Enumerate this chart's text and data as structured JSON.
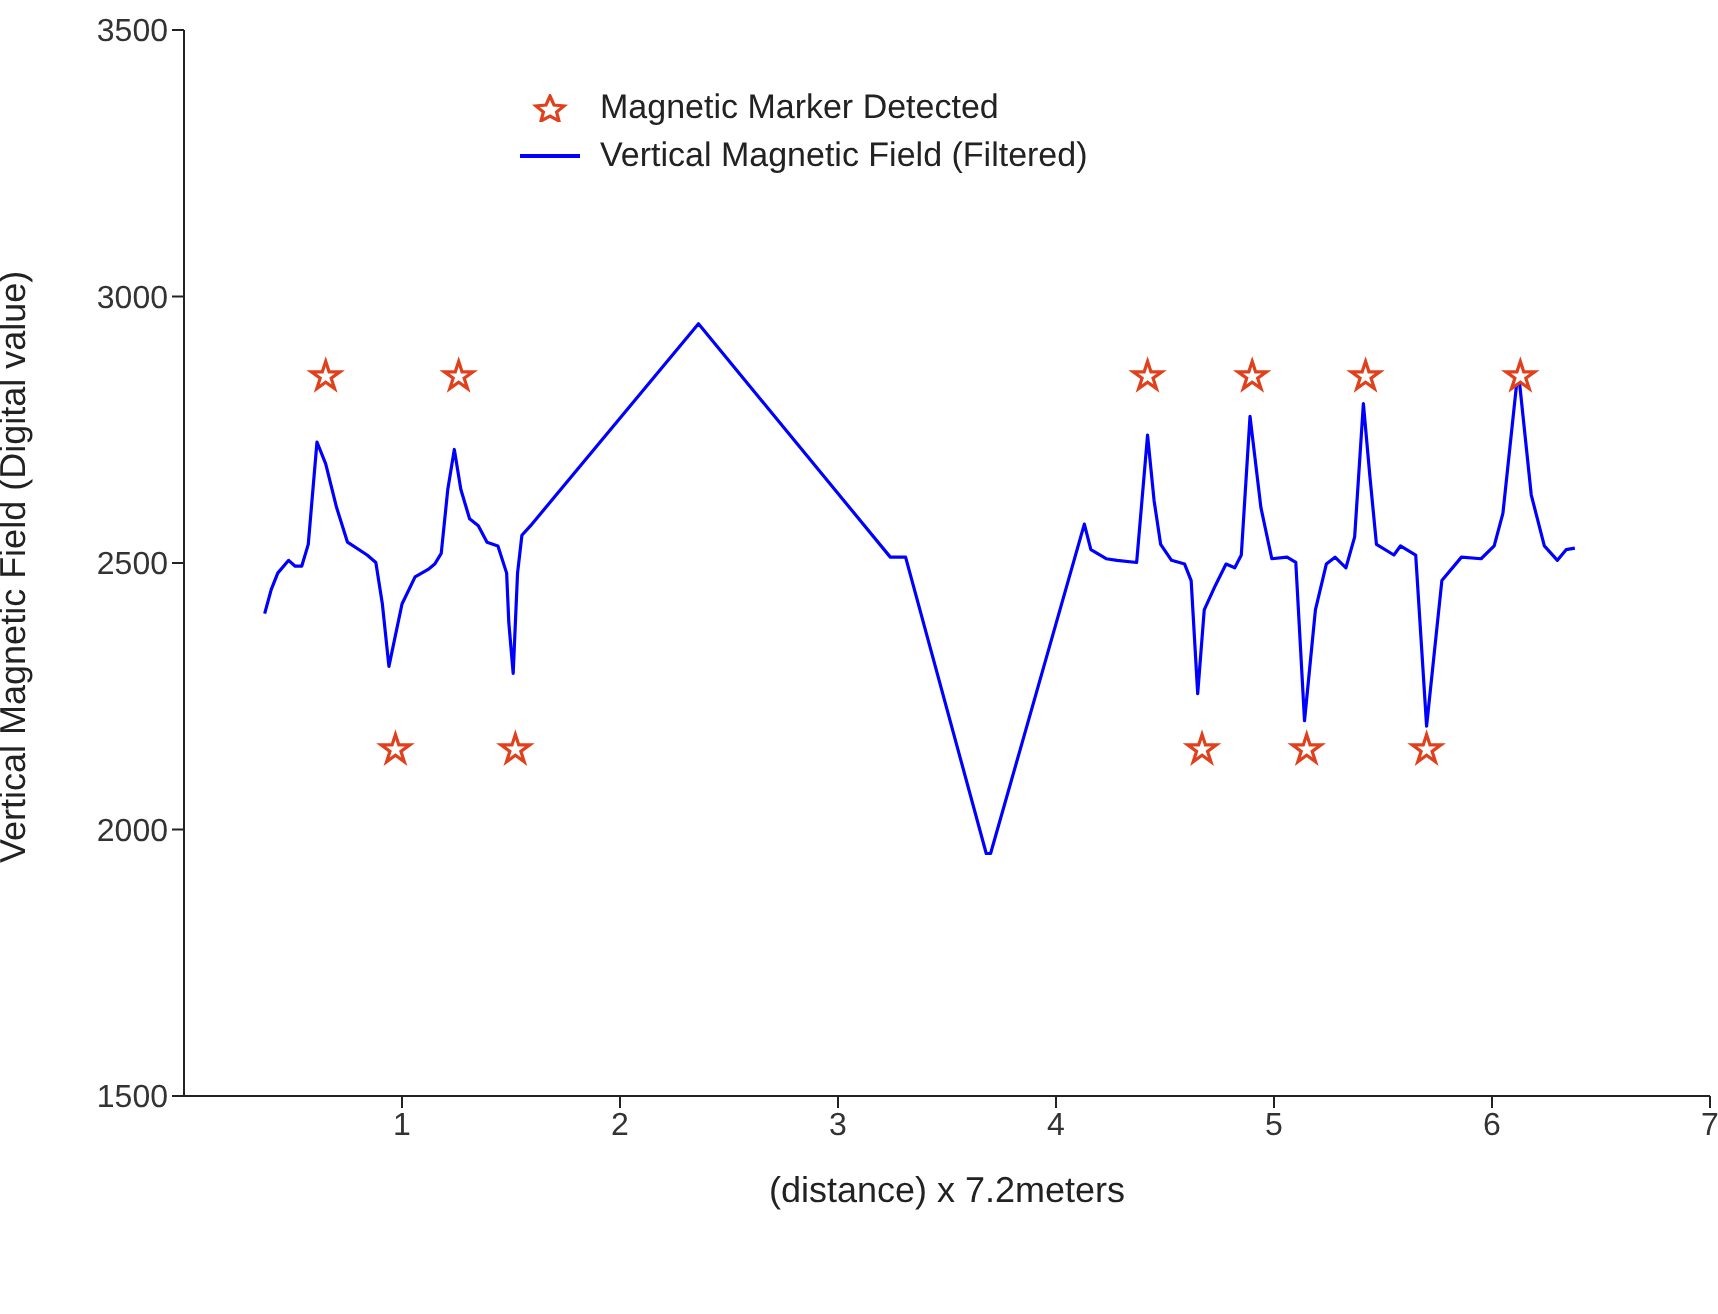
{
  "chart_data": {
    "type": "line",
    "xlabel": "(distance) x 7.2meters",
    "ylabel": "Vertical Magnetic Field (Digital value)",
    "xlim": [
      0,
      7
    ],
    "xticks": [
      1,
      2,
      3,
      4,
      5,
      6,
      7
    ],
    "ylim": [
      1500,
      3500
    ],
    "yticks": [
      1500,
      2000,
      2500,
      3000,
      3500
    ],
    "grid": false,
    "legend": "top",
    "series": [
      {
        "name": "Magnetic Marker Detected",
        "type": "scatter",
        "marker": "star",
        "color": "#e0401c",
        "x": [
          0.65,
          0.97,
          1.26,
          1.52,
          4.42,
          4.67,
          4.9,
          5.15,
          5.42,
          5.7,
          6.13
        ],
        "values": [
          2850,
          2150,
          2850,
          2150,
          2850,
          2150,
          2850,
          2150,
          2850,
          2150,
          2850
        ]
      },
      {
        "name": "Vertical Magnetic Field (Filtered)",
        "type": "line",
        "marker": "none",
        "line_style": "solid",
        "color": "#0000ff",
        "x": [
          0.37,
          0.4,
          0.43,
          0.48,
          0.51,
          0.54,
          0.57,
          0.61,
          0.65,
          0.7,
          0.75,
          0.84,
          0.88,
          0.91,
          0.94,
          1.0,
          1.06,
          1.12,
          1.15,
          1.18,
          1.21,
          1.24,
          1.27,
          1.31,
          1.35,
          1.39,
          1.44,
          1.48,
          1.49,
          1.51,
          1.53,
          1.55,
          1.59,
          2.36,
          3.24,
          3.31,
          3.68,
          3.7,
          4.13,
          4.16,
          4.23,
          4.28,
          4.37,
          4.42,
          4.45,
          4.48,
          4.53,
          4.59,
          4.62,
          4.65,
          4.68,
          4.73,
          4.78,
          4.82,
          4.85,
          4.89,
          4.94,
          4.99,
          5.06,
          5.1,
          5.14,
          5.19,
          5.24,
          5.28,
          5.33,
          5.37,
          5.41,
          5.44,
          5.47,
          5.55,
          5.58,
          5.65,
          5.7,
          5.77,
          5.86,
          5.95,
          6.01,
          6.05,
          6.12,
          6.18,
          6.24,
          6.3,
          6.34,
          6.38
        ],
        "values": [
          2405,
          2450,
          2481,
          2505,
          2494,
          2494,
          2535,
          2727,
          2686,
          2604,
          2539,
          2515,
          2501,
          2423,
          2306,
          2423,
          2474,
          2488,
          2498,
          2518,
          2638,
          2713,
          2638,
          2583,
          2570,
          2539,
          2532,
          2481,
          2388,
          2293,
          2481,
          2552,
          2570,
          2949,
          2511,
          2511,
          1955,
          1955,
          2573,
          2525,
          2508,
          2505,
          2501,
          2740,
          2617,
          2535,
          2505,
          2498,
          2467,
          2255,
          2412,
          2457,
          2498,
          2491,
          2515,
          2775,
          2604,
          2508,
          2511,
          2501,
          2204,
          2412,
          2498,
          2511,
          2491,
          2549,
          2799,
          2662,
          2535,
          2515,
          2532,
          2515,
          2194,
          2467,
          2511,
          2508,
          2532,
          2593,
          2863,
          2628,
          2532,
          2505,
          2525,
          2528
        ]
      }
    ]
  }
}
